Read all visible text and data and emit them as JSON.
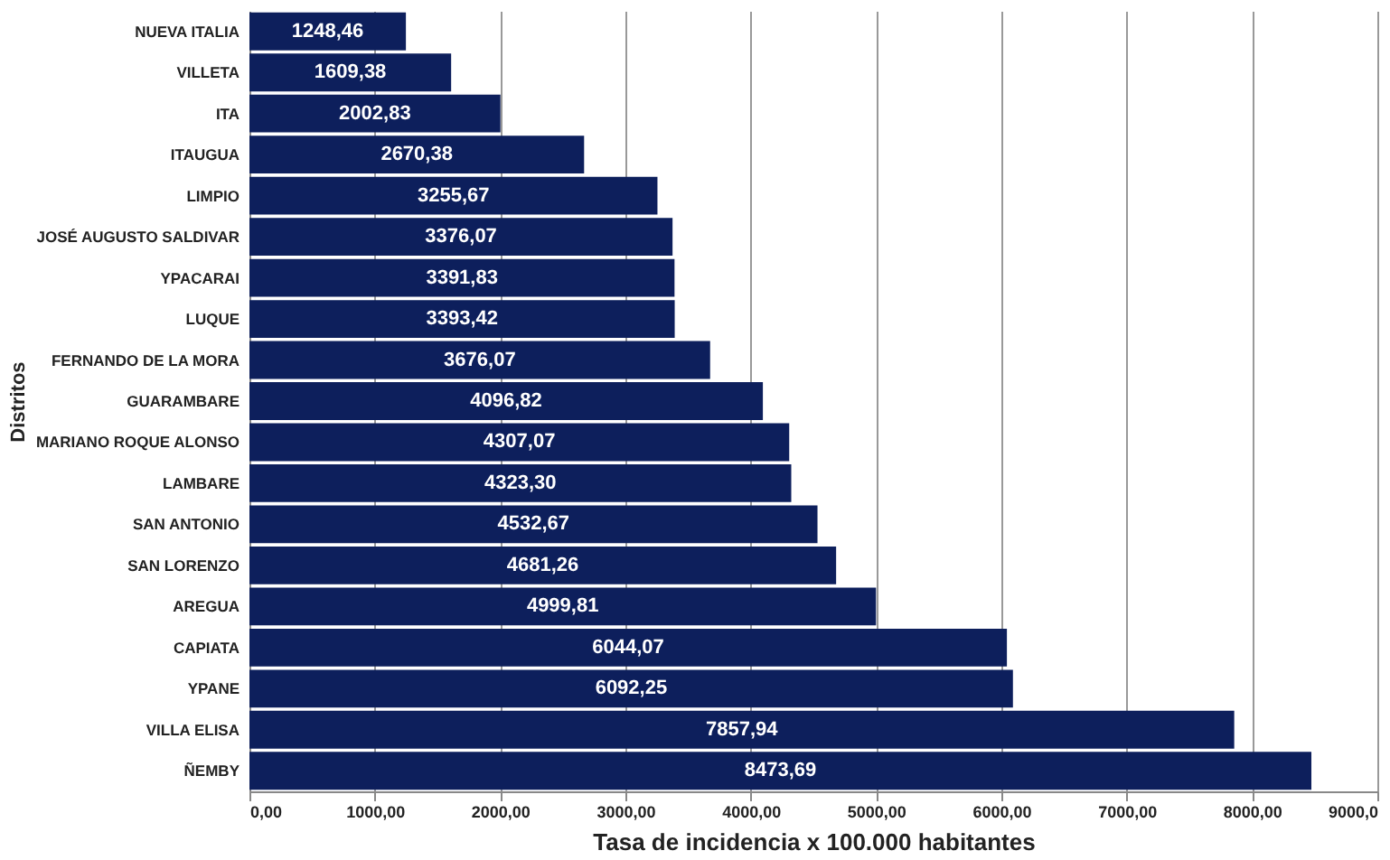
{
  "chart_data": {
    "type": "bar",
    "orientation": "horizontal",
    "xlabel": "Tasa de incidencia x 100.000 habitantes",
    "ylabel": "Distritos",
    "categories": [
      "NUEVA ITALIA",
      "VILLETA",
      "ITA",
      "ITAUGUA",
      "LIMPIO",
      "JOSÉ AUGUSTO SALDIVAR",
      "YPACARAI",
      "LUQUE",
      "FERNANDO DE LA MORA",
      "GUARAMBARE",
      "MARIANO ROQUE ALONSO",
      "LAMBARE",
      "SAN ANTONIO",
      "SAN LORENZO",
      "AREGUA",
      "CAPIATA",
      "YPANE",
      "VILLA ELISA",
      "ÑEMBY"
    ],
    "values": [
      1248.46,
      1609.38,
      2002.83,
      2670.38,
      3255.67,
      3376.07,
      3391.83,
      3393.42,
      3676.07,
      4096.82,
      4307.07,
      4323.3,
      4532.67,
      4681.26,
      4999.81,
      6044.07,
      6092.25,
      7857.94,
      8473.69
    ],
    "value_labels": [
      "1248,46",
      "1609,38",
      "2002,83",
      "2670,38",
      "3255,67",
      "3376,07",
      "3391,83",
      "3393,42",
      "3676,07",
      "4096,82",
      "4307,07",
      "4323,30",
      "4532,67",
      "4681,26",
      "4999,81",
      "6044,07",
      "6092,25",
      "7857,94",
      "8473,69"
    ],
    "color": "#0d1f5c",
    "xlim": [
      0,
      9000
    ],
    "xticks": [
      {
        "value": 0,
        "label": "0,00"
      },
      {
        "value": 1000,
        "label": "1000,00"
      },
      {
        "value": 2000,
        "label": "2000,00"
      },
      {
        "value": 3000,
        "label": "3000,00"
      },
      {
        "value": 4000,
        "label": "4000,00"
      },
      {
        "value": 5000,
        "label": "5000,00"
      },
      {
        "value": 6000,
        "label": "6000,00"
      },
      {
        "value": 7000,
        "label": "7000,00"
      },
      {
        "value": 8000,
        "label": "8000,00"
      },
      {
        "value": 9000,
        "label": "9000,0"
      }
    ],
    "grid": "x"
  }
}
